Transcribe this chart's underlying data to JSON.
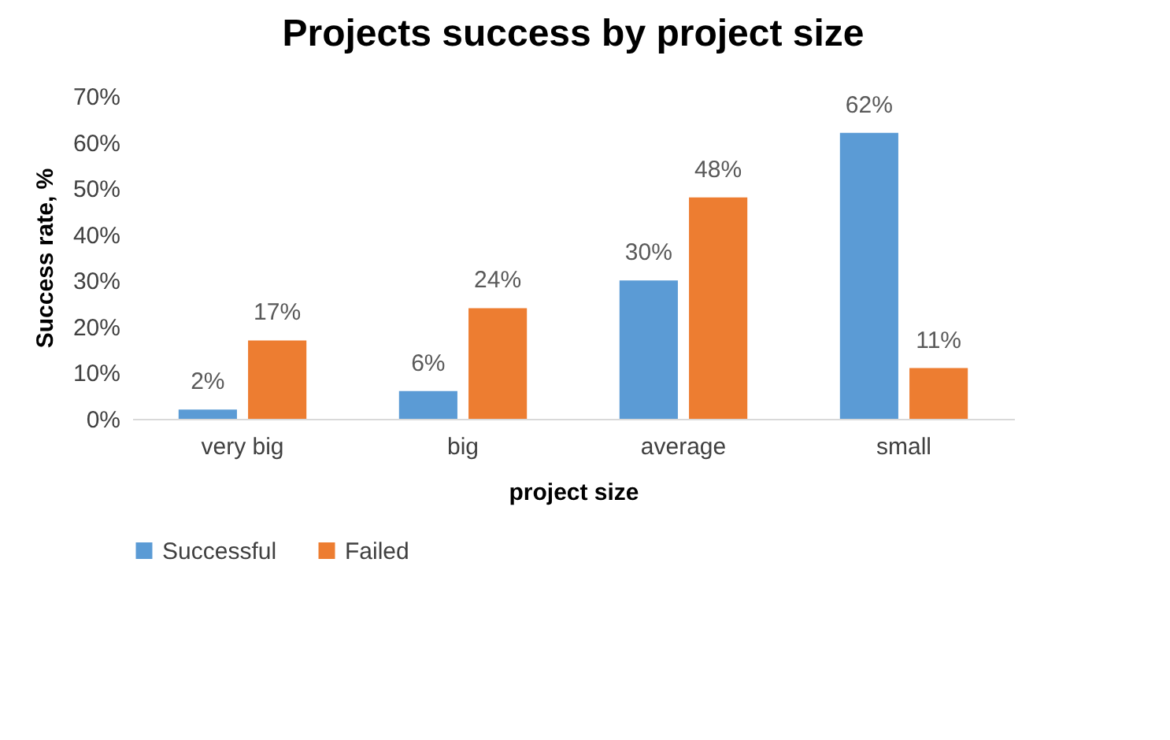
{
  "chart_data": {
    "type": "bar",
    "title": "Projects success by project size",
    "xlabel": "project size",
    "ylabel": "Success rate, %",
    "categories": [
      "very big",
      "big",
      "average",
      "small"
    ],
    "series": [
      {
        "name": "Successful",
        "color": "#5b9bd5",
        "values": [
          2,
          6,
          30,
          62
        ],
        "value_labels": [
          "2%",
          "6%",
          "30%",
          "62%"
        ]
      },
      {
        "name": "Failed",
        "color": "#ed7d31",
        "values": [
          17,
          24,
          48,
          11
        ],
        "value_labels": [
          "17%",
          "24%",
          "48%",
          "11%"
        ]
      }
    ],
    "ylim": [
      0,
      70
    ],
    "yticks": [
      {
        "value": 0,
        "label": "0%"
      },
      {
        "value": 10,
        "label": "10%"
      },
      {
        "value": 20,
        "label": "20%"
      },
      {
        "value": 30,
        "label": "30%"
      },
      {
        "value": 40,
        "label": "40%"
      },
      {
        "value": 50,
        "label": "50%"
      },
      {
        "value": 60,
        "label": "60%"
      },
      {
        "value": 70,
        "label": "70%"
      }
    ],
    "grid": false,
    "legend": "bottom"
  }
}
